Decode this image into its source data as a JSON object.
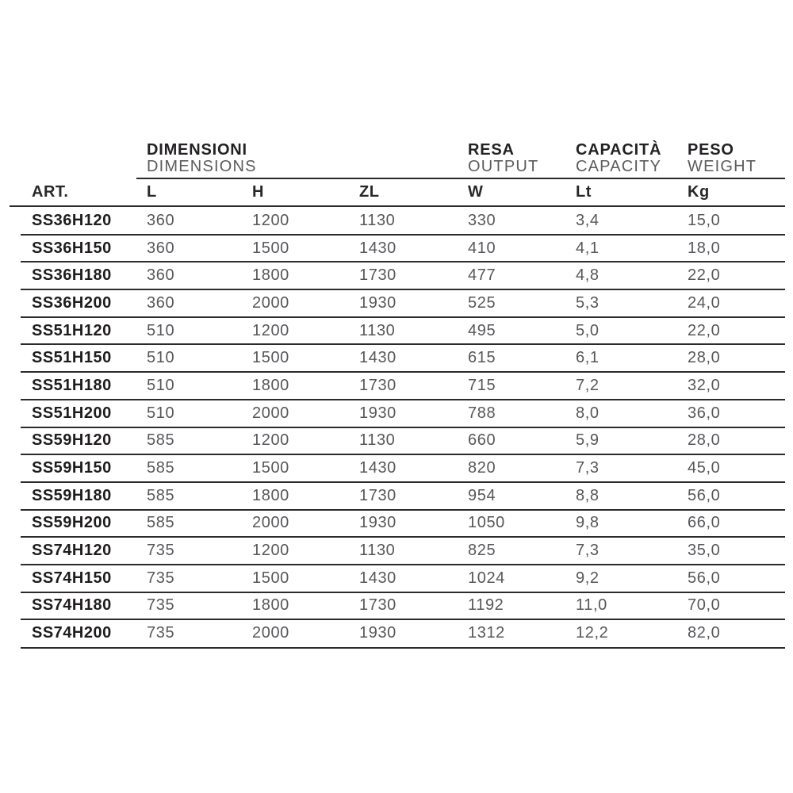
{
  "colors": {
    "background": "#ffffff",
    "rule_color": "#2c2a2b",
    "heading_color": "#242124",
    "subtitle_color": "#5b5c5e",
    "article_color": "#1f1c1e",
    "value_color": "#56575a"
  },
  "table": {
    "header": {
      "art_label": "ART.",
      "groups": [
        {
          "title_it": "DIMENSIONI",
          "title_en": "DIMENSIONS"
        },
        {
          "title_it": "RESA",
          "title_en": "OUTPUT"
        },
        {
          "title_it": "CAPACITÀ",
          "title_en": "CAPACITY"
        },
        {
          "title_it": "PESO",
          "title_en": "WEIGHT"
        }
      ],
      "columns": [
        "L",
        "H",
        "ZL",
        "W",
        "Lt",
        "Kg"
      ]
    },
    "rows": [
      {
        "art": "SS36H120",
        "l": "360",
        "h": "1200",
        "zl": "1130",
        "w": "330",
        "lt": "3,4",
        "kg": "15,0"
      },
      {
        "art": "SS36H150",
        "l": "360",
        "h": "1500",
        "zl": "1430",
        "w": "410",
        "lt": "4,1",
        "kg": "18,0"
      },
      {
        "art": "SS36H180",
        "l": "360",
        "h": "1800",
        "zl": "1730",
        "w": "477",
        "lt": "4,8",
        "kg": "22,0"
      },
      {
        "art": "SS36H200",
        "l": "360",
        "h": "2000",
        "zl": "1930",
        "w": "525",
        "lt": "5,3",
        "kg": "24,0"
      },
      {
        "art": "SS51H120",
        "l": "510",
        "h": "1200",
        "zl": "1130",
        "w": "495",
        "lt": "5,0",
        "kg": "22,0"
      },
      {
        "art": "SS51H150",
        "l": "510",
        "h": "1500",
        "zl": "1430",
        "w": "615",
        "lt": "6,1",
        "kg": "28,0"
      },
      {
        "art": "SS51H180",
        "l": "510",
        "h": "1800",
        "zl": "1730",
        "w": "715",
        "lt": "7,2",
        "kg": "32,0"
      },
      {
        "art": "SS51H200",
        "l": "510",
        "h": "2000",
        "zl": "1930",
        "w": "788",
        "lt": "8,0",
        "kg": "36,0"
      },
      {
        "art": "SS59H120",
        "l": "585",
        "h": "1200",
        "zl": "1130",
        "w": "660",
        "lt": "5,9",
        "kg": "28,0"
      },
      {
        "art": "SS59H150",
        "l": "585",
        "h": "1500",
        "zl": "1430",
        "w": "820",
        "lt": "7,3",
        "kg": "45,0"
      },
      {
        "art": "SS59H180",
        "l": "585",
        "h": "1800",
        "zl": "1730",
        "w": "954",
        "lt": "8,8",
        "kg": "56,0"
      },
      {
        "art": "SS59H200",
        "l": "585",
        "h": "2000",
        "zl": "1930",
        "w": "1050",
        "lt": "9,8",
        "kg": "66,0"
      },
      {
        "art": "SS74H120",
        "l": "735",
        "h": "1200",
        "zl": "1130",
        "w": "825",
        "lt": "7,3",
        "kg": "35,0"
      },
      {
        "art": "SS74H150",
        "l": "735",
        "h": "1500",
        "zl": "1430",
        "w": "1024",
        "lt": "9,2",
        "kg": "56,0"
      },
      {
        "art": "SS74H180",
        "l": "735",
        "h": "1800",
        "zl": "1730",
        "w": "1192",
        "lt": "11,0",
        "kg": "70,0"
      },
      {
        "art": "SS74H200",
        "l": "735",
        "h": "2000",
        "zl": "1930",
        "w": "1312",
        "lt": "12,2",
        "kg": "82,0"
      }
    ]
  }
}
